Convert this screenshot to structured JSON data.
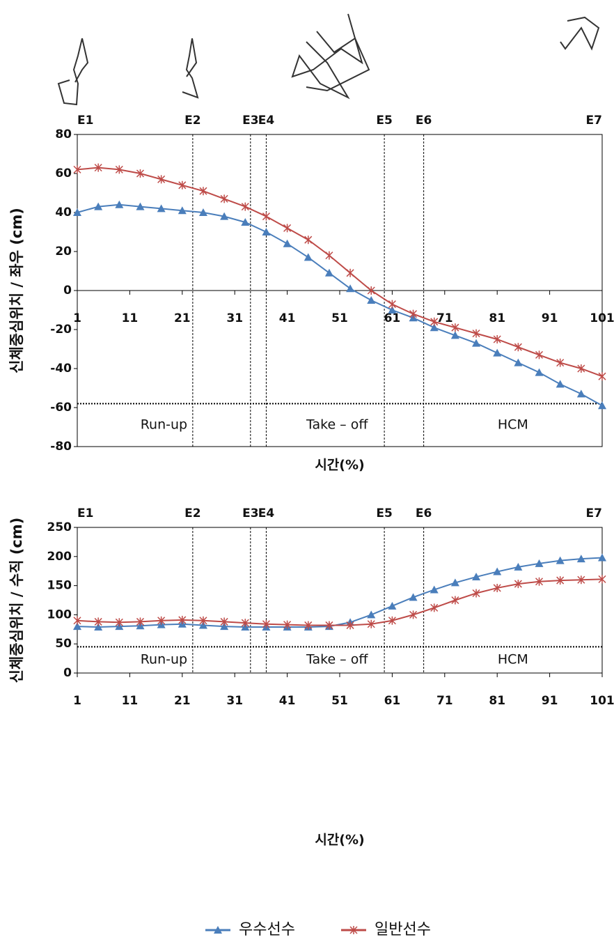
{
  "chart_data": [
    {
      "type": "line",
      "ylabel": "신체중심위치 / 좌우 (cm)",
      "xlabel": "시간(%)",
      "x": [
        1,
        5,
        9,
        13,
        17,
        21,
        25,
        29,
        33,
        37,
        41,
        45,
        49,
        53,
        57,
        61,
        65,
        69,
        73,
        77,
        81,
        85,
        89,
        93,
        97,
        101
      ],
      "series": [
        {
          "name": "우수선수",
          "color": "#4a7ebb",
          "marker": "triangle",
          "values": [
            40,
            43,
            44,
            43,
            42,
            41,
            40,
            38,
            35,
            30,
            24,
            17,
            9,
            1,
            -5,
            -10,
            -14,
            -19,
            -23,
            -27,
            -32,
            -37,
            -42,
            -48,
            -53,
            -59
          ]
        },
        {
          "name": "일반선수",
          "color": "#be4b48",
          "marker": "asterisk",
          "values": [
            62,
            63,
            62,
            60,
            57,
            54,
            51,
            47,
            43,
            38,
            32,
            26,
            18,
            9,
            0,
            -7,
            -12,
            -16,
            -19,
            -22,
            -25,
            -29,
            -33,
            -37,
            -40,
            -44
          ]
        }
      ],
      "xlim": [
        1,
        101
      ],
      "xticks": [
        1,
        11,
        21,
        31,
        41,
        51,
        61,
        71,
        81,
        91,
        101
      ],
      "ylim": [
        -80,
        80
      ],
      "yticks": [
        -80,
        -60,
        -40,
        -20,
        0,
        20,
        40,
        60,
        80
      ],
      "events": [
        {
          "label": "E1",
          "x": 1
        },
        {
          "label": "E2",
          "x": 23
        },
        {
          "label": "E3",
          "x": 34
        },
        {
          "label": "E4",
          "x": 37
        },
        {
          "label": "E5",
          "x": 59.5
        },
        {
          "label": "E6",
          "x": 67
        },
        {
          "label": "E7",
          "x": 101
        }
      ],
      "phases": [
        "Run-up",
        "Take – off",
        "HCM"
      ],
      "reference_line": -58
    },
    {
      "type": "line",
      "ylabel": "신체중심위치 / 수직 (cm)",
      "xlabel": "시간(%)",
      "x": [
        1,
        5,
        9,
        13,
        17,
        21,
        25,
        29,
        33,
        37,
        41,
        45,
        49,
        53,
        57,
        61,
        65,
        69,
        73,
        77,
        81,
        85,
        89,
        93,
        97,
        101
      ],
      "series": [
        {
          "color": "#4a7ebb",
          "marker": "triangle",
          "values": [
            80,
            79,
            80,
            81,
            83,
            84,
            82,
            80,
            79,
            79,
            79,
            79,
            80,
            87,
            100,
            115,
            130,
            143,
            155,
            165,
            174,
            182,
            188,
            193,
            196,
            198
          ]
        },
        {
          "color": "#be4b48",
          "marker": "asterisk",
          "values": [
            90,
            88,
            87,
            88,
            90,
            91,
            90,
            88,
            86,
            84,
            83,
            82,
            82,
            82,
            84,
            90,
            100,
            112,
            125,
            137,
            146,
            153,
            157,
            159,
            160,
            161
          ]
        }
      ],
      "xlim": [
        1,
        101
      ],
      "xticks": [
        1,
        11,
        21,
        31,
        41,
        51,
        61,
        71,
        81,
        91,
        101
      ],
      "ylim": [
        0,
        250
      ],
      "yticks": [
        0,
        50,
        100,
        150,
        200,
        250
      ],
      "events": [
        {
          "label": "E1",
          "x": 1
        },
        {
          "label": "E2",
          "x": 23
        },
        {
          "label": "E3",
          "x": 34
        },
        {
          "label": "E4",
          "x": 37
        },
        {
          "label": "E5",
          "x": 59.5
        },
        {
          "label": "E6",
          "x": 67
        },
        {
          "label": "E7",
          "x": 101
        }
      ],
      "phases": [
        "Run-up",
        "Take – off",
        "HCM"
      ],
      "reference_line": 45
    }
  ]
}
